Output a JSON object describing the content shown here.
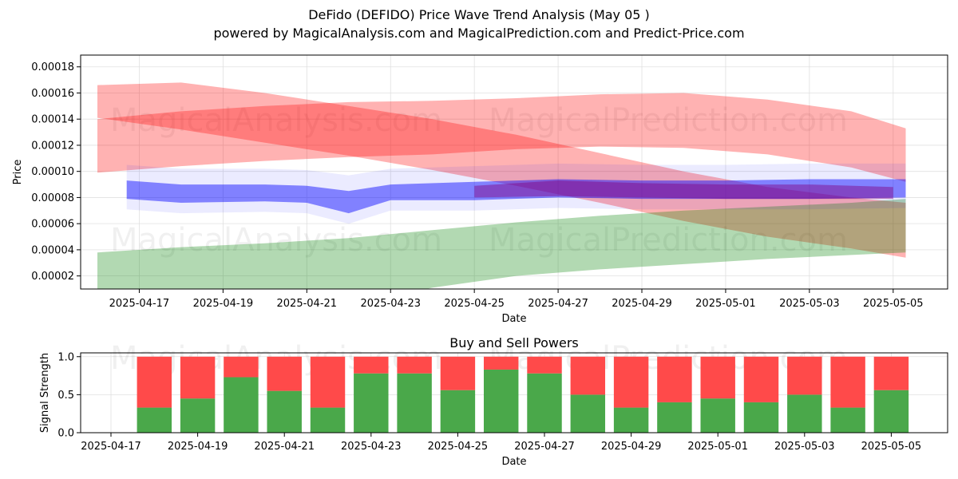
{
  "title": "DeFido (DEFIDO) Price Wave Trend Analysis (May 05 )",
  "subtitle": "powered by MagicalAnalysis.com and MagicalPrediction.com and Predict-Price.com",
  "watermarks": [
    "MagicalAnalysis.com",
    "MagicalPrediction.com"
  ],
  "colors": {
    "red_band": "#ff0000",
    "green_band": "#008000",
    "blue_band": "#0000ff",
    "purple_band": "#800080",
    "sell_bar": "#ff4a4a",
    "buy_bar": "#4aa84a",
    "grid": "#e0e0e0"
  },
  "chart_data": [
    {
      "type": "area",
      "title": "",
      "xlabel": "Date",
      "ylabel": "Price",
      "x_ticks": [
        "2025-04-17",
        "2025-04-19",
        "2025-04-21",
        "2025-04-23",
        "2025-04-25",
        "2025-04-27",
        "2025-04-29",
        "2025-05-01",
        "2025-05-03",
        "2025-05-05"
      ],
      "y_ticks": [
        "0.00002",
        "0.00004",
        "0.00006",
        "0.00008",
        "0.00010",
        "0.00012",
        "0.00014",
        "0.00016",
        "0.00018"
      ],
      "xlim": [
        "2025-04-15.6",
        "2025-05-06.3"
      ],
      "ylim": [
        1e-05,
        0.000189
      ],
      "grid": true,
      "bands": [
        {
          "color": "red",
          "x": [
            "2025-04-16",
            "2025-04-18",
            "2025-04-20",
            "2025-04-22",
            "2025-04-24",
            "2025-04-26",
            "2025-04-28",
            "2025-04-30",
            "2025-05-02",
            "2025-05-04",
            "2025-05-05.3"
          ],
          "upper": [
            0.000166,
            0.000168,
            0.00016,
            0.00015,
            0.00014,
            0.000128,
            0.000114,
            0.0001,
            8.8e-05,
            8e-05,
            7.6e-05
          ],
          "lower": [
            0.000141,
            0.000132,
            0.000122,
            0.000112,
            0.000101,
            8.9e-05,
            7.6e-05,
            6.2e-05,
            5e-05,
            4.1e-05,
            3.4e-05
          ]
        },
        {
          "color": "red",
          "x": [
            "2025-04-16",
            "2025-04-18",
            "2025-04-20",
            "2025-04-22",
            "2025-04-24",
            "2025-04-26",
            "2025-04-28",
            "2025-04-30",
            "2025-05-02",
            "2025-05-04",
            "2025-05-05.3"
          ],
          "upper": [
            0.00014,
            0.000146,
            0.00015,
            0.000153,
            0.000154,
            0.000156,
            0.000159,
            0.00016,
            0.000155,
            0.000146,
            0.000133
          ],
          "lower": [
            9.9e-05,
            0.000104,
            0.000108,
            0.000111,
            0.000113,
            0.000117,
            0.000119,
            0.000118,
            0.000113,
            0.000103,
            9.2e-05
          ]
        },
        {
          "color": "green",
          "x": [
            "2025-04-16",
            "2025-04-18",
            "2025-04-20",
            "2025-04-22",
            "2025-04-24",
            "2025-04-26",
            "2025-04-28",
            "2025-04-30",
            "2025-05-02",
            "2025-05-04",
            "2025-05-05.3"
          ],
          "upper": [
            3.8e-05,
            4.2e-05,
            4.5e-05,
            4.9e-05,
            5.5e-05,
            6.1e-05,
            6.6e-05,
            7e-05,
            7.3e-05,
            7.6e-05,
            7.9e-05
          ],
          "lower": [
            1e-05,
            5e-06,
            0.0,
            -3e-06,
            1.1e-05,
            2e-05,
            2.5e-05,
            2.9e-05,
            3.3e-05,
            3.6e-05,
            3.8e-05
          ]
        },
        {
          "color": "blue",
          "x": [
            "2025-04-16.7",
            "2025-04-18",
            "2025-04-20",
            "2025-04-21",
            "2025-04-22",
            "2025-04-23",
            "2025-04-25",
            "2025-04-27",
            "2025-04-29",
            "2025-05-01",
            "2025-05-03",
            "2025-05-05.3"
          ],
          "upper": [
            9.3e-05,
            9e-05,
            9e-05,
            8.9e-05,
            8.5e-05,
            9e-05,
            9.2e-05,
            9.4e-05,
            9.3e-05,
            9.3e-05,
            9.4e-05,
            9.4e-05
          ],
          "lower": [
            7.9e-05,
            7.6e-05,
            7.7e-05,
            7.6e-05,
            6.8e-05,
            7.8e-05,
            7.8e-05,
            8e-05,
            7.9e-05,
            7.9e-05,
            7.9e-05,
            8e-05
          ]
        },
        {
          "color": "purple",
          "x": [
            "2025-04-25",
            "2025-04-27",
            "2025-04-29",
            "2025-05-01",
            "2025-05-03",
            "2025-05-05"
          ],
          "upper": [
            8.9e-05,
            9.3e-05,
            9.1e-05,
            9e-05,
            9e-05,
            8.8e-05
          ],
          "lower": [
            8e-05,
            8.1e-05,
            8e-05,
            7.9e-05,
            7.9e-05,
            7.9e-05
          ]
        }
      ]
    },
    {
      "type": "bar",
      "title": "Buy and Sell Powers",
      "xlabel": "Date",
      "ylabel": "Signal Strength",
      "x_ticks": [
        "2025-04-17",
        "2025-04-19",
        "2025-04-21",
        "2025-04-23",
        "2025-04-25",
        "2025-04-27",
        "2025-04-29",
        "2025-05-01",
        "2025-05-03",
        "2025-05-05"
      ],
      "y_ticks": [
        "0.0",
        "0.5",
        "1.0"
      ],
      "ylim": [
        0,
        1.05
      ],
      "categories": [
        "2025-04-18",
        "2025-04-19",
        "2025-04-20",
        "2025-04-21",
        "2025-04-22",
        "2025-04-23",
        "2025-04-24",
        "2025-04-25",
        "2025-04-26",
        "2025-04-27",
        "2025-04-28",
        "2025-04-29",
        "2025-04-30",
        "2025-05-01",
        "2025-05-02",
        "2025-05-03",
        "2025-05-04",
        "2025-05-05"
      ],
      "series": [
        {
          "color": "green",
          "values": [
            0.33,
            0.45,
            0.73,
            0.55,
            0.33,
            0.78,
            0.78,
            0.56,
            0.83,
            0.78,
            0.5,
            0.33,
            0.4,
            0.45,
            0.4,
            0.5,
            0.33,
            0.56
          ]
        },
        {
          "color": "red",
          "values": [
            0.67,
            0.55,
            0.27,
            0.45,
            0.67,
            0.22,
            0.22,
            0.44,
            0.17,
            0.22,
            0.5,
            0.67,
            0.6,
            0.55,
            0.6,
            0.5,
            0.67,
            0.44
          ]
        }
      ]
    }
  ]
}
